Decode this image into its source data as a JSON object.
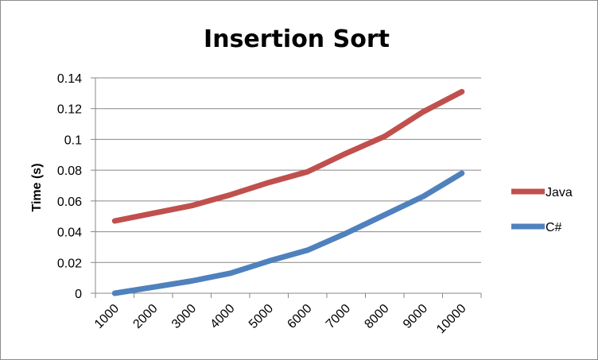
{
  "chart_data": {
    "type": "line",
    "title": "Insertion Sort",
    "xlabel": "",
    "ylabel": "Time (s)",
    "categories": [
      "1000",
      "2000",
      "3000",
      "4000",
      "5000",
      "6000",
      "7000",
      "8000",
      "9000",
      "10000"
    ],
    "ylim": [
      0,
      0.14
    ],
    "yticks": [
      "0",
      "0.02",
      "0.04",
      "0.06",
      "0.08",
      "0.1",
      "0.12",
      "0.14"
    ],
    "grid": true,
    "legend_position": "right",
    "series": [
      {
        "name": "Java",
        "color": "#c0504d",
        "values": [
          0.047,
          0.052,
          0.057,
          0.064,
          0.072,
          0.079,
          0.091,
          0.102,
          0.118,
          0.131
        ]
      },
      {
        "name": "C#",
        "color": "#4f81bd",
        "values": [
          0.0,
          0.004,
          0.008,
          0.013,
          0.021,
          0.028,
          0.039,
          0.051,
          0.063,
          0.078
        ]
      }
    ]
  }
}
